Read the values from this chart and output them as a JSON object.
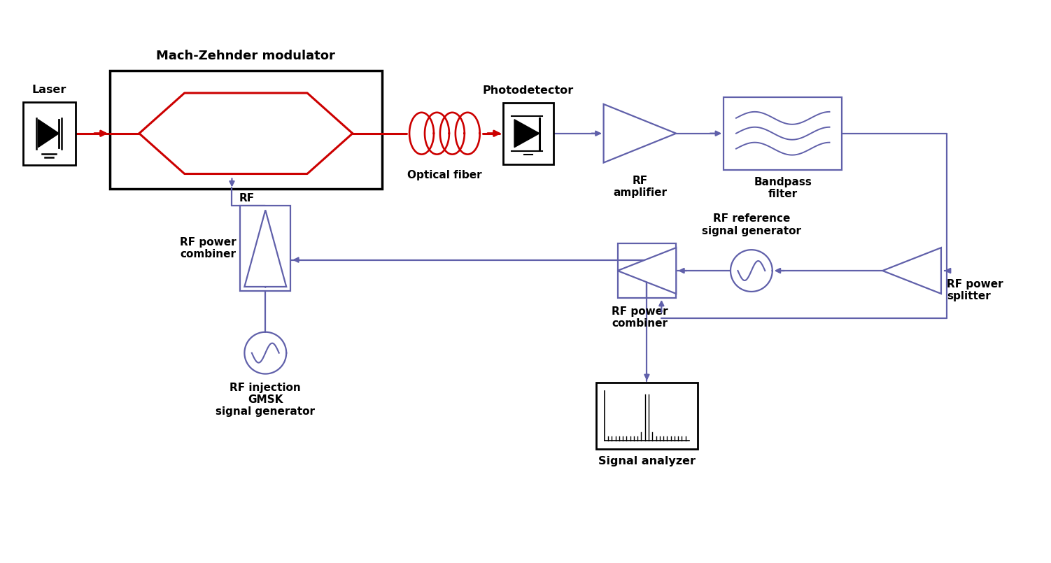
{
  "bg_color": "#ffffff",
  "red_color": "#cc0000",
  "blue_color": "#6060aa",
  "black_color": "#000000",
  "title_mzm": "Mach-Zehnder modulator",
  "label_laser": "Laser",
  "label_optical_fiber": "Optical fiber",
  "label_photodetector": "Photodetector",
  "label_rf_amplifier": "RF\namplifier",
  "label_bandpass": "Bandpass\nfilter",
  "label_rf_power_combiner1": "RF power\ncombiner",
  "label_rf_power_combiner2": "RF power\ncombiner",
  "label_rf_power_splitter": "RF power\nsplitter",
  "label_rf_ref_sig_gen": "RF reference\nsignal generator",
  "label_rf_injection": "RF injection\nGMSK\nsignal generator",
  "label_signal_analyzer": "Signal analyzer",
  "label_rf": "RF"
}
